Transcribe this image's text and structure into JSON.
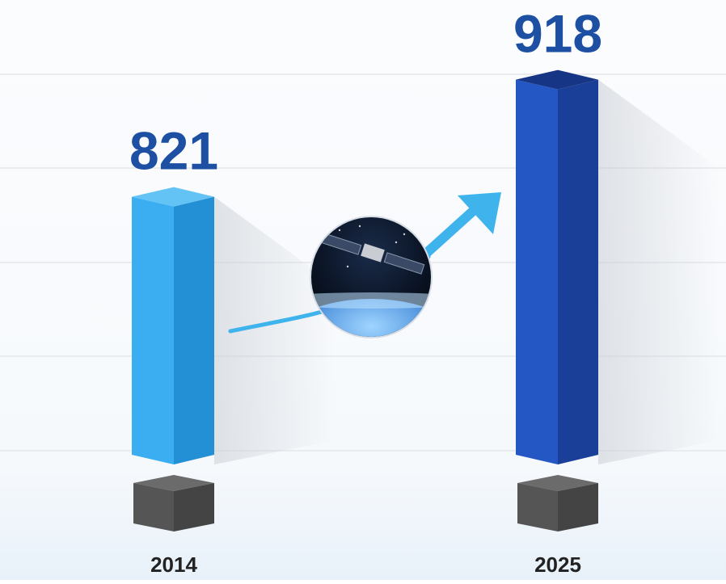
{
  "chart_data": {
    "type": "bar",
    "categories": [
      "2014",
      "2025"
    ],
    "values": [
      821,
      918
    ],
    "title": "",
    "xlabel": "",
    "ylabel": "",
    "grid": true,
    "legend": "none"
  },
  "colors": {
    "bar_2014_front": "#3aaef0",
    "bar_2014_side": "#2390d6",
    "bar_2014_top": "#63c3f5",
    "bar_2025_front": "#2456c4",
    "bar_2025_side": "#1a3f98",
    "bar_2025_top": "#163685",
    "value_label": "#1d4fa3",
    "category_label": "#222222",
    "pedestal": "#555555",
    "arrow": "#3fb4ec",
    "grid": "#e9ebef"
  },
  "icons": {
    "center_image": "satellite-over-earth-icon",
    "trend_arrow": "arrow-up-right-icon"
  }
}
